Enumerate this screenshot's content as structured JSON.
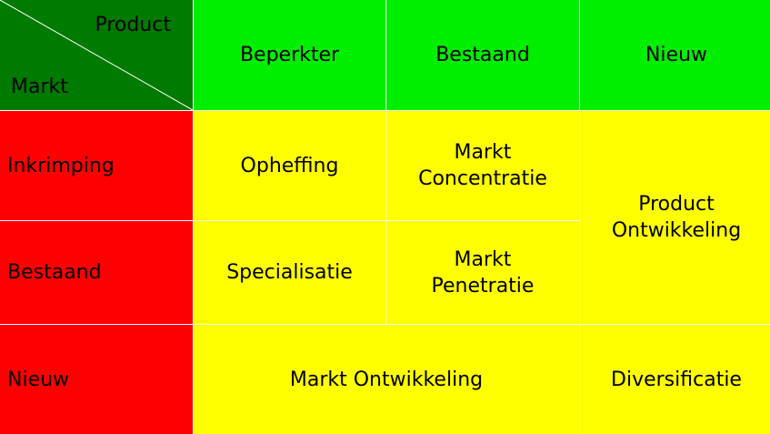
{
  "colors": {
    "corner": "#007a00",
    "column_header": "#00ee00",
    "row_header": "#ff0000",
    "strategy_cell": "#ffff00",
    "grid_line": "#ffffff"
  },
  "corner": {
    "product_label": "Product",
    "markt_label": "Markt"
  },
  "columns": [
    "Beperkter",
    "Bestaand",
    "Nieuw"
  ],
  "rows": [
    "Inkrimping",
    "Bestaand",
    "Nieuw"
  ],
  "cells": {
    "inkrimping_beperkter": "Opheffing",
    "inkrimping_bestaand": "Markt\nConcentratie",
    "bestaand_beperkter": "Specialisatie",
    "bestaand_bestaand": "Markt\nPenetratie",
    "nieuw_column_span": "Product\nOntwikkeling",
    "nieuw_row_span": "Markt Ontwikkeling",
    "nieuw_nieuw": "Diversificatie"
  }
}
